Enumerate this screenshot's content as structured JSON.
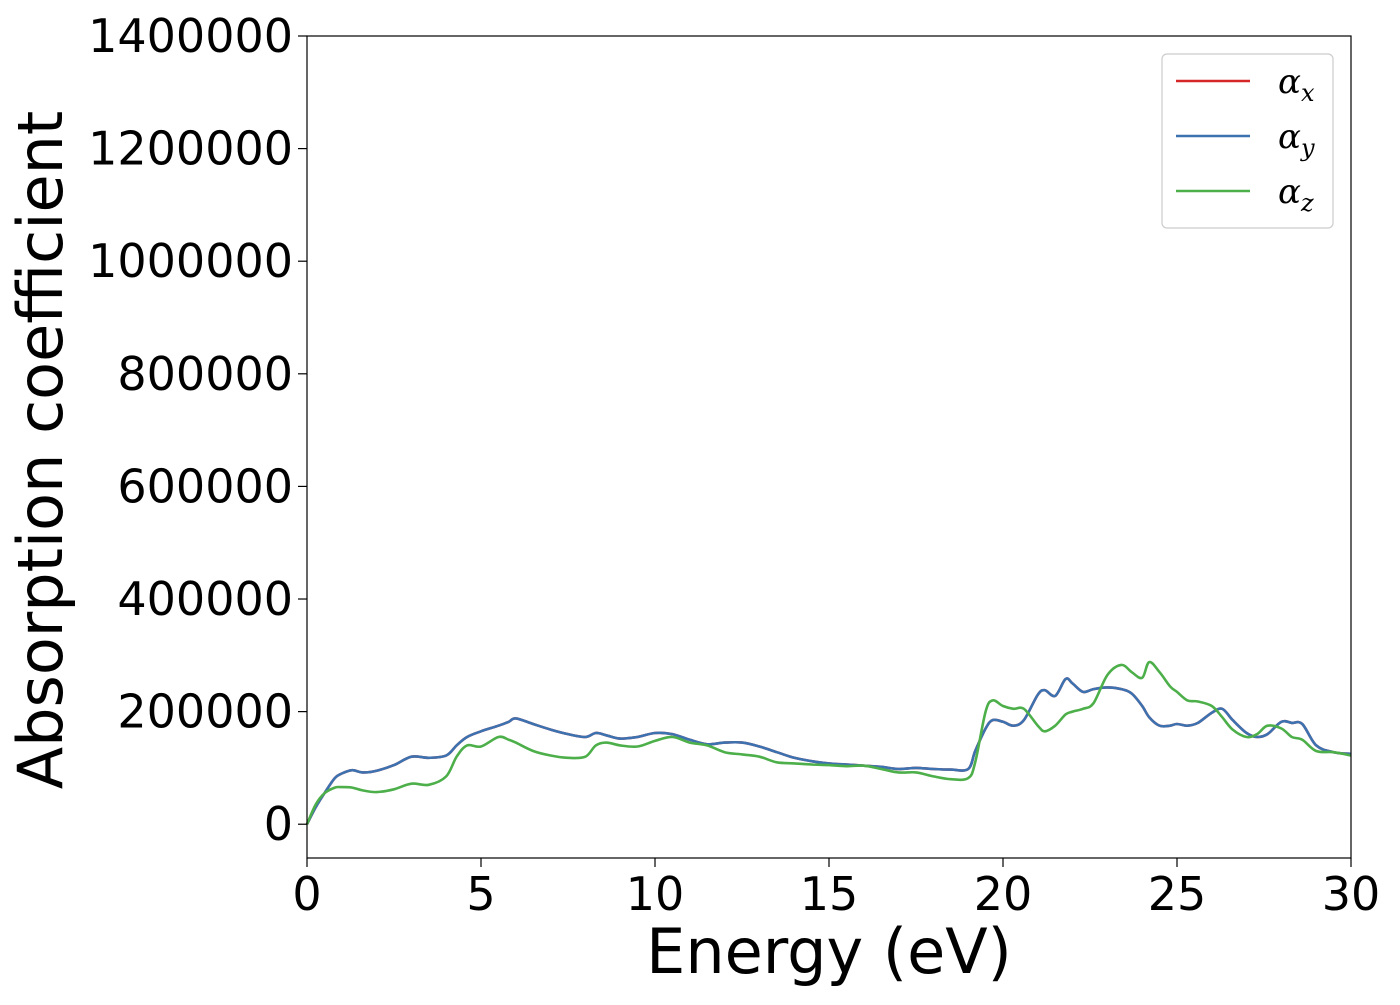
{
  "chart_data": {
    "type": "line",
    "xlabel": "Energy (eV)",
    "ylabel": "Absorption coefficient",
    "xlim": [
      0,
      30
    ],
    "ylim": [
      -60000,
      1400000
    ],
    "x_ticks": [
      "0",
      "5",
      "10",
      "15",
      "20",
      "25",
      "30"
    ],
    "x_tick_values": [
      0,
      5,
      10,
      15,
      20,
      25,
      30
    ],
    "y_ticks": [
      "0",
      "200000",
      "400000",
      "600000",
      "800000",
      "1000000",
      "1200000",
      "1400000"
    ],
    "y_tick_values": [
      0,
      200000,
      400000,
      600000,
      800000,
      1000000,
      1200000,
      1400000
    ],
    "grid": false,
    "legend_position": "top-right",
    "x": [
      0,
      0.25,
      0.5,
      0.8,
      1.0,
      1.3,
      1.6,
      2.0,
      2.5,
      3.0,
      3.5,
      4.0,
      4.3,
      4.6,
      5.0,
      5.5,
      5.8,
      6.0,
      6.5,
      7.0,
      7.5,
      8.0,
      8.3,
      8.6,
      9.0,
      9.5,
      10.0,
      10.5,
      11.0,
      11.5,
      12.0,
      12.5,
      13.0,
      13.5,
      14.0,
      14.5,
      15.0,
      15.5,
      16.0,
      16.5,
      17.0,
      17.5,
      18.0,
      18.5,
      19.0,
      19.2,
      19.5,
      19.7,
      20.0,
      20.3,
      20.6,
      21.0,
      21.2,
      21.5,
      21.8,
      22.0,
      22.3,
      22.6,
      23.0,
      23.4,
      23.7,
      24.0,
      24.2,
      24.5,
      24.8,
      25.0,
      25.3,
      25.6,
      26.0,
      26.3,
      26.6,
      27.0,
      27.3,
      27.6,
      28.0,
      28.3,
      28.6,
      29.0,
      29.5,
      30.0
    ],
    "series": [
      {
        "name": "αx",
        "color": "#d62728",
        "values": [
          0,
          30000,
          55000,
          82000,
          90000,
          96000,
          92000,
          95000,
          105000,
          120000,
          118000,
          122000,
          140000,
          155000,
          165000,
          175000,
          182000,
          188000,
          178000,
          168000,
          160000,
          155000,
          162000,
          158000,
          152000,
          155000,
          162000,
          160000,
          150000,
          142000,
          145000,
          145000,
          138000,
          128000,
          118000,
          112000,
          108000,
          106000,
          104000,
          102000,
          98000,
          100000,
          98000,
          97000,
          98000,
          130000,
          170000,
          185000,
          182000,
          175000,
          185000,
          230000,
          238000,
          228000,
          258000,
          250000,
          235000,
          240000,
          243000,
          240000,
          232000,
          210000,
          190000,
          175000,
          175000,
          178000,
          175000,
          180000,
          198000,
          205000,
          185000,
          162000,
          155000,
          160000,
          182000,
          180000,
          178000,
          140000,
          128000,
          125000
        ]
      },
      {
        "name": "αy",
        "color": "#3d72b0",
        "values": [
          0,
          30000,
          55000,
          82000,
          90000,
          96000,
          92000,
          95000,
          105000,
          120000,
          118000,
          122000,
          140000,
          155000,
          165000,
          175000,
          182000,
          188000,
          178000,
          168000,
          160000,
          155000,
          162000,
          158000,
          152000,
          155000,
          162000,
          160000,
          150000,
          142000,
          145000,
          145000,
          138000,
          128000,
          118000,
          112000,
          108000,
          106000,
          104000,
          102000,
          98000,
          100000,
          98000,
          97000,
          98000,
          130000,
          170000,
          185000,
          182000,
          175000,
          185000,
          230000,
          238000,
          228000,
          258000,
          250000,
          235000,
          240000,
          243000,
          240000,
          232000,
          210000,
          190000,
          175000,
          175000,
          178000,
          175000,
          180000,
          198000,
          205000,
          185000,
          162000,
          155000,
          160000,
          182000,
          180000,
          178000,
          140000,
          128000,
          125000
        ]
      },
      {
        "name": "αz",
        "color": "#4daf4a",
        "values": [
          0,
          35000,
          55000,
          65000,
          66000,
          65000,
          60000,
          57000,
          62000,
          72000,
          70000,
          85000,
          120000,
          140000,
          138000,
          155000,
          150000,
          145000,
          130000,
          122000,
          118000,
          120000,
          140000,
          145000,
          140000,
          138000,
          148000,
          155000,
          145000,
          140000,
          128000,
          124000,
          120000,
          110000,
          108000,
          106000,
          105000,
          103000,
          104000,
          98000,
          92000,
          92000,
          85000,
          80000,
          82000,
          110000,
          200000,
          220000,
          210000,
          205000,
          205000,
          175000,
          165000,
          175000,
          195000,
          200000,
          205000,
          215000,
          265000,
          283000,
          270000,
          260000,
          288000,
          270000,
          245000,
          235000,
          220000,
          218000,
          210000,
          190000,
          168000,
          155000,
          160000,
          175000,
          170000,
          155000,
          150000,
          130000,
          128000,
          122000
        ]
      }
    ]
  },
  "legend": {
    "items": [
      {
        "symbol": "α",
        "sub": "x",
        "color": "#d62728"
      },
      {
        "symbol": "α",
        "sub": "y",
        "color": "#3d72b0"
      },
      {
        "symbol": "α",
        "sub": "z",
        "color": "#4daf4a"
      }
    ]
  }
}
